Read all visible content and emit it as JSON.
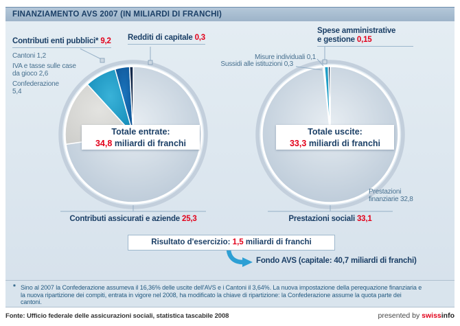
{
  "title": "FINANZIAMENTO AVS 2007 (IN MILIARDI DI FRANCHI)",
  "colors": {
    "accent_red": "#e2001a",
    "navy": "#1b3f66",
    "label_blue": "#47708f",
    "titlebar": "#a9bed2",
    "background": "#dde7ef"
  },
  "entrate": {
    "enti_pubblici": {
      "text": "Contributi enti pubblici*",
      "value": "9,2"
    },
    "cantoni": "Cantoni 1,2",
    "iva": "IVA e tasse sulle case\nda gioco 2,6",
    "confederazione": "Confederazione\n5,4",
    "redditi": {
      "text": "Redditi di capitale",
      "value": "0,3"
    },
    "assicurati": {
      "text": "Contributi assicurati e aziende",
      "value": "25,3"
    },
    "box": {
      "title": "Totale entrate:",
      "value": "34,8",
      "unit": "miliardi di franchi"
    }
  },
  "uscite": {
    "spese": {
      "line1": "Spese amministrative",
      "line2": "e gestione",
      "value": "0,15"
    },
    "misure": "Misure individuali 0,1",
    "sussidi": "Sussidi alle istituzioni 0,3",
    "finanziarie": "Prestazioni\nfinanziarie 32,8",
    "sociali": {
      "text": "Prestazioni sociali",
      "value": "33,1"
    },
    "box": {
      "title": "Totale uscite:",
      "value": "33,3",
      "unit": "miliardi di franchi"
    }
  },
  "risultato": {
    "prefix": "Risultato d'esercizio:",
    "value": "1,5",
    "suffix": "miliardi di franchi"
  },
  "fondo": "Fondo AVS (capitale: 40,7 miliardi di franchi)",
  "footnote": {
    "marker": "*",
    "text": "Sino al 2007 la Confederazione assumeva il 16,36% delle uscite dell'AVS e i Cantoni il 3,64%. La nuova impostazione della perequazione finanziaria e la nuova ripartizione dei compiti, entrata in vigore nel 2008, ha modificato la chiave di ripartizione: la Confederazione assume la quota parte dei cantoni."
  },
  "footer": {
    "fonte": "Fonte: Ufficio federale delle assicurazioni sociali, statistica tascabile 2008",
    "presented_prefix": "presented by ",
    "brand_red": "swiss",
    "brand_dark": "info"
  },
  "chart_data": [
    {
      "type": "pie",
      "title": "Totale entrate: 34,8 miliardi di franchi",
      "total": 34.8,
      "unit": "miliardi di franchi",
      "group": {
        "label": "Contributi enti pubblici*",
        "value": 9.2
      },
      "slices": [
        {
          "label": "Contributi assicurati e aziende",
          "value": 25.3,
          "color": "#c3d0dd",
          "gradient": [
            "#e7edf2",
            "#b3c3d3"
          ]
        },
        {
          "label": "Confederazione",
          "value": 5.4,
          "color": "#d9d9d6",
          "gradient": [
            "#e3e3e0",
            "#cdcdca"
          ]
        },
        {
          "label": "IVA e tasse sulle case da gioco",
          "value": 2.6,
          "color": "#1e9dc6",
          "gradient": [
            "#39b2d8",
            "#0f86b4"
          ]
        },
        {
          "label": "Cantoni",
          "value": 1.2,
          "color": "#1261a7",
          "gradient": [
            "#1a74bc",
            "#0c4e8e"
          ]
        },
        {
          "label": "Redditi di capitale",
          "value": 0.3,
          "color": "#13294a"
        }
      ]
    },
    {
      "type": "pie",
      "title": "Totale uscite: 33,3 miliardi di franchi",
      "total": 33.3,
      "unit": "miliardi di franchi",
      "slices": [
        {
          "label": "Prestazioni finanziarie",
          "value": 32.8,
          "color": "#c3d0dd",
          "gradient": [
            "#e7edf2",
            "#b3c3d3"
          ]
        },
        {
          "label": "Misure individuali",
          "value": 0.1,
          "color": "#d5dad8"
        },
        {
          "label": "Sussidi alle istituzioni",
          "value": 0.3,
          "color": "#1e9dc6"
        },
        {
          "label": "Spese amministrative e gestione",
          "value": 0.15,
          "color": "#13294a"
        }
      ]
    }
  ]
}
